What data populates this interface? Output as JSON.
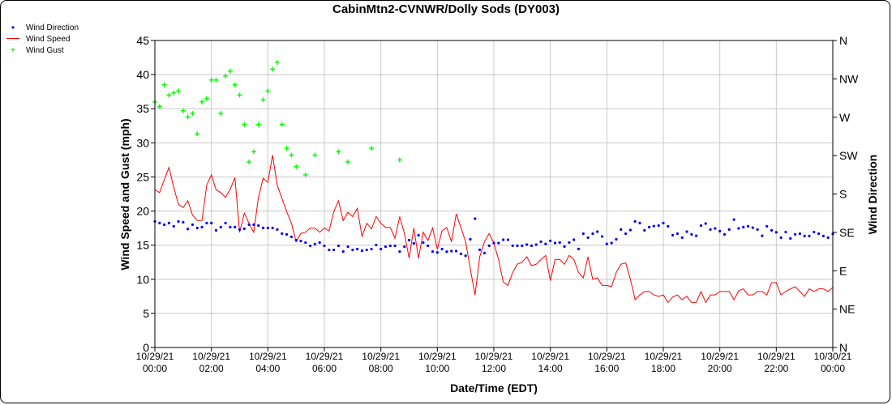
{
  "chart_data": {
    "type": "line",
    "title": "CabinMtn2-CVNWR/Dolly Sods (DY003)",
    "xlabel": "Date/Time (EDT)",
    "ylabel": "Wind Speed and Gust (mph)",
    "y2label": "Wind Direction",
    "ylim": [
      0,
      45
    ],
    "y2lim": [
      0,
      360
    ],
    "xlim_hours": [
      0,
      24
    ],
    "grid": true,
    "legend_position": "top-left",
    "interval_minutes": 10,
    "yticks": [
      "0",
      "5",
      "10",
      "15",
      "20",
      "25",
      "30",
      "35",
      "40",
      "45"
    ],
    "y2ticks": [
      "N",
      "NE",
      "E",
      "SE",
      "S",
      "SW",
      "W",
      "NW",
      "N"
    ],
    "xticks": [
      {
        "date": "10/29/21",
        "time": "00:00"
      },
      {
        "date": "10/29/21",
        "time": "02:00"
      },
      {
        "date": "10/29/21",
        "time": "04:00"
      },
      {
        "date": "10/29/21",
        "time": "06:00"
      },
      {
        "date": "10/29/21",
        "time": "08:00"
      },
      {
        "date": "10/29/21",
        "time": "10:00"
      },
      {
        "date": "10/29/21",
        "time": "12:00"
      },
      {
        "date": "10/29/21",
        "time": "14:00"
      },
      {
        "date": "10/29/21",
        "time": "16:00"
      },
      {
        "date": "10/29/21",
        "time": "18:00"
      },
      {
        "date": "10/29/21",
        "time": "20:00"
      },
      {
        "date": "10/29/21",
        "time": "22:00"
      },
      {
        "date": "10/30/21",
        "time": "00:00"
      }
    ],
    "series": [
      {
        "name": "Wind Direction",
        "color": "#0000ff",
        "axis": "right",
        "values": [
          147.8,
          145.9,
          144,
          145.9,
          142.1,
          147.8,
          146.9,
          138.9,
          144,
          140.2,
          141.2,
          145.9,
          145.9,
          137.4,
          141.2,
          145.9,
          141.2,
          141.2,
          138.3,
          139.3,
          144,
          144,
          143,
          140.2,
          140.2,
          140.2,
          138.3,
          133.6,
          132.6,
          129.8,
          125.9,
          124.9,
          123,
          119.2,
          121.1,
          123,
          119.2,
          114.4,
          114.4,
          119.2,
          112.5,
          118.2,
          114.4,
          115.4,
          113.5,
          114.4,
          115.4,
          120.1,
          115.4,
          118.2,
          119.2,
          119.2,
          112.5,
          118.2,
          125.9,
          122.1,
          131.6,
          123,
          119.2,
          112.5,
          111.5,
          115.4,
          112.3,
          113,
          113,
          109.8,
          107.6,
          126.9,
          151,
          114.6,
          110.8,
          119.3,
          122.5,
          122.5,
          126.3,
          126.3,
          119.3,
          119.3,
          119.3,
          120.6,
          119.3,
          120.6,
          124.1,
          121.5,
          125,
          122.5,
          123.1,
          118.4,
          123.1,
          126.3,
          115.5,
          133.5,
          128.8,
          133.5,
          135.8,
          130.1,
          121.5,
          122.5,
          126.9,
          138.3,
          133.5,
          137.7,
          147.8,
          145.9,
          137.4,
          141.2,
          142.4,
          143,
          145.9,
          142.1,
          131.7,
          133.5,
          128.8,
          135.8,
          132.6,
          131,
          143,
          145.3,
          138.3,
          139.6,
          136.4,
          132.6,
          138.3,
          150,
          139.6,
          141.2,
          142.1,
          140.5,
          138.3,
          131,
          142.1,
          137.4,
          135.1,
          128.8,
          135.4,
          127.9,
          132.6,
          133.5,
          130.7,
          130.7,
          135.4,
          133.5,
          130.7,
          128.8,
          133.2
        ]
      },
      {
        "name": "Wind Speed",
        "color": "#ff0000",
        "axis": "left",
        "values": [
          23.1,
          22.7,
          24.6,
          26.4,
          23.5,
          21.0,
          20.5,
          21.5,
          19.4,
          18.6,
          18.6,
          23.8,
          25.3,
          23.1,
          22.7,
          22.0,
          23.2,
          24.9,
          16.9,
          19.7,
          18.2,
          16.9,
          22.0,
          24.8,
          24.2,
          28.2,
          23.8,
          21.8,
          19.9,
          18.2,
          15.5,
          16.7,
          16.9,
          17.5,
          17.5,
          16.9,
          17.5,
          17.1,
          19.9,
          21.5,
          18.6,
          19.8,
          19.2,
          20.4,
          16.3,
          18.2,
          17.4,
          19.2,
          18.2,
          17.6,
          17.6,
          16.0,
          19.2,
          16.7,
          13.1,
          17.5,
          13.1,
          16.9,
          15.7,
          17.5,
          14.4,
          17.1,
          17.6,
          15.5,
          19.6,
          17.6,
          15.5,
          11.5,
          7.7,
          13.3,
          15.5,
          16.7,
          15.3,
          12.9,
          9.6,
          9.1,
          11.0,
          12.2,
          12.5,
          13.3,
          12.0,
          12.2,
          12.9,
          13.5,
          9.8,
          12.9,
          12.9,
          12.2,
          13.5,
          12.9,
          11.0,
          10.2,
          13.3,
          10.0,
          10.2,
          9.1,
          9.1,
          8.9,
          11.0,
          12.2,
          12.4,
          10.0,
          7.0,
          7.7,
          8.2,
          8.2,
          7.7,
          7.5,
          7.7,
          6.6,
          7.4,
          7.7,
          7.0,
          7.5,
          6.6,
          6.6,
          8.2,
          6.6,
          7.7,
          7.7,
          8.2,
          8.2,
          8.2,
          7.0,
          8.3,
          8.6,
          7.7,
          7.7,
          8.2,
          8.2,
          7.7,
          9.5,
          9.5,
          7.7,
          8.2,
          8.6,
          8.9,
          8.2,
          7.5,
          8.6,
          8.2,
          8.6,
          8.6,
          8.2,
          8.8
        ]
      },
      {
        "name": "Wind Gust",
        "color": "#00ff00",
        "axis": "left",
        "points": [
          [
            0,
            36.0
          ],
          [
            1,
            35.3
          ],
          [
            2,
            38.5
          ],
          [
            3,
            37.0
          ],
          [
            4,
            37.3
          ],
          [
            5,
            37.6
          ],
          [
            6,
            34.7
          ],
          [
            7,
            33.8
          ],
          [
            8,
            34.3
          ],
          [
            9,
            31.3
          ],
          [
            10,
            36.0
          ],
          [
            11,
            36.5
          ],
          [
            12,
            39.2
          ],
          [
            13,
            39.2
          ],
          [
            14,
            34.3
          ],
          [
            15,
            39.8
          ],
          [
            16,
            40.5
          ],
          [
            17,
            38.5
          ],
          [
            18,
            37.0
          ],
          [
            19,
            32.7
          ],
          [
            20,
            27.2
          ],
          [
            21,
            28.7
          ],
          [
            22,
            32.7
          ],
          [
            23,
            36.3
          ],
          [
            24,
            37.6
          ],
          [
            25,
            40.8
          ],
          [
            26,
            41.8
          ],
          [
            27,
            32.7
          ],
          [
            28,
            29.2
          ],
          [
            29,
            28.2
          ],
          [
            30,
            26.5
          ],
          [
            32,
            25.3
          ],
          [
            34,
            28.2
          ],
          [
            39,
            28.7
          ],
          [
            41,
            27.2
          ],
          [
            46,
            29.2
          ],
          [
            52,
            27.5
          ]
        ]
      }
    ]
  }
}
